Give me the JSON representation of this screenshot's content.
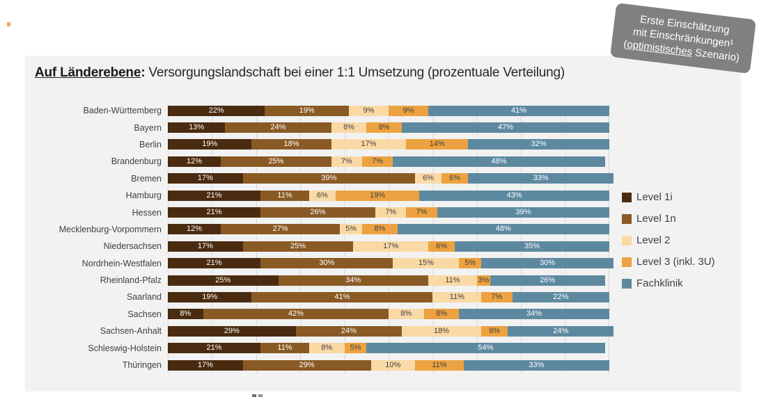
{
  "title": {
    "highlight": "Auf Länderebene",
    "separator": ":",
    "rest": " Versorgungslandschaft bei einer 1:1 Umsetzung (prozentuale Verteilung)"
  },
  "badge": {
    "line1": "Erste Einschätzung",
    "line2": "mit Einschränkungen¹",
    "line3_pre": "(",
    "line3_underline": "optimistisches",
    "line3_post": " Szenario)",
    "background": "#808080"
  },
  "decorations": {
    "corner_dot_color": "#f5a54b"
  },
  "chart_data": {
    "type": "bar",
    "orientation": "horizontal-stacked",
    "title": "Auf Länderebene: Versorgungslandschaft bei einer 1:1 Umsetzung (prozentuale Verteilung)",
    "categories": [
      "Baden-Württemberg",
      "Bayern",
      "Berlin",
      "Brandenburg",
      "Bremen",
      "Hamburg",
      "Hessen",
      "Mecklenburg-Vorpommern",
      "Niedersachsen",
      "Nordrhein-Westfalen",
      "Rheinland-Pfalz",
      "Saarland",
      "Sachsen",
      "Sachsen-Anhalt",
      "Schleswig-Holstein",
      "Thüringen"
    ],
    "series": [
      {
        "name": "Level 1i",
        "color": "#4a2b10",
        "text_color": "#ffffff",
        "values": [
          22,
          13,
          19,
          12,
          17,
          21,
          21,
          12,
          17,
          21,
          25,
          19,
          8,
          29,
          21,
          17
        ]
      },
      {
        "name": "Level 1n",
        "color": "#8a5a25",
        "text_color": "#ffffff",
        "values": [
          19,
          24,
          18,
          25,
          39,
          11,
          26,
          27,
          25,
          30,
          34,
          41,
          42,
          24,
          11,
          29
        ]
      },
      {
        "name": "Level 2",
        "color": "#fad9a5",
        "text_color": "#3f3f3f",
        "values": [
          9,
          8,
          17,
          7,
          6,
          6,
          7,
          5,
          17,
          15,
          11,
          11,
          8,
          18,
          8,
          10
        ]
      },
      {
        "name": "Level 3 (inkl. 3U)",
        "color": "#eca240",
        "text_color": "#3f3f3f",
        "values": [
          9,
          8,
          14,
          7,
          6,
          19,
          7,
          8,
          6,
          5,
          3,
          7,
          8,
          6,
          5,
          11
        ]
      },
      {
        "name": "Fachklinik",
        "color": "#5d89a0",
        "text_color": "#ffffff",
        "values": [
          41,
          47,
          32,
          48,
          33,
          43,
          39,
          48,
          35,
          30,
          26,
          22,
          34,
          24,
          54,
          33
        ]
      }
    ],
    "xlim": [
      0,
      100
    ],
    "gridline_interval": 10,
    "value_suffix": "%",
    "grid": true,
    "legend_position": "right",
    "plot_background": "#f2f2f2",
    "gridline_color": "#d9d9d9"
  }
}
